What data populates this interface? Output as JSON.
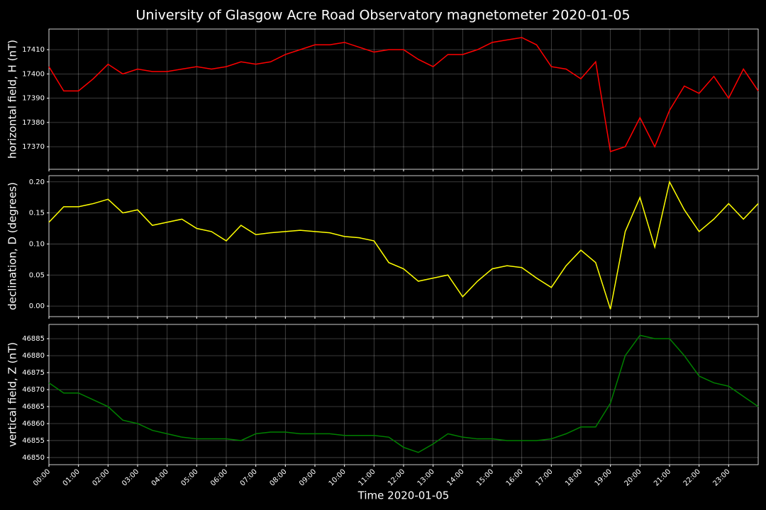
{
  "chart_data": [
    {
      "type": "line",
      "title": "University of Glasgow Acre Road Observatory magnetometer 2020-01-05",
      "ylabel": "horizontal field, H (nT)",
      "x": [
        0,
        0.5,
        1,
        1.5,
        2,
        2.5,
        3,
        3.5,
        4,
        4.5,
        5,
        5.5,
        6,
        6.5,
        7,
        7.5,
        8,
        8.5,
        9,
        9.5,
        10,
        10.5,
        11,
        11.5,
        12,
        12.5,
        13,
        13.5,
        14,
        14.5,
        15,
        15.5,
        16,
        16.5,
        17,
        17.5,
        18,
        18.5,
        19,
        19.5,
        20,
        20.5,
        21,
        21.5,
        22,
        22.5,
        23,
        23.5,
        24
      ],
      "series": [
        {
          "color": "#ff0000",
          "values": [
            17403,
            17393,
            17393,
            17398,
            17404,
            17400,
            17402,
            17401,
            17401,
            17402,
            17403,
            17402,
            17403,
            17405,
            17404,
            17405,
            17408,
            17410,
            17412,
            17412,
            17413,
            17411,
            17409,
            17410,
            17410,
            17406,
            17403,
            17408,
            17408,
            17410,
            17413,
            17414,
            17415,
            17412,
            17403,
            17402,
            17398,
            17405,
            17368,
            17370,
            17382,
            17370,
            17385,
            17395,
            17392,
            17399,
            17390,
            17402,
            17393
          ]
        }
      ],
      "xlim": [
        0,
        24
      ],
      "ylim": [
        17360.7,
        17418.5
      ],
      "yticks": [
        17370,
        17380,
        17390,
        17400,
        17410
      ],
      "grid": true
    },
    {
      "type": "line",
      "ylabel": "declination, D (degrees)",
      "x": [
        0,
        0.5,
        1,
        1.5,
        2,
        2.5,
        3,
        3.5,
        4,
        4.5,
        5,
        5.5,
        6,
        6.5,
        7,
        7.5,
        8,
        8.5,
        9,
        9.5,
        10,
        10.5,
        11,
        11.5,
        12,
        12.5,
        13,
        13.5,
        14,
        14.5,
        15,
        15.5,
        16,
        16.5,
        17,
        17.5,
        18,
        18.5,
        19,
        19.5,
        20,
        20.5,
        21,
        21.5,
        22,
        22.5,
        23,
        23.5,
        24
      ],
      "series": [
        {
          "color": "#ffff00",
          "values": [
            0.135,
            0.16,
            0.16,
            0.165,
            0.172,
            0.15,
            0.155,
            0.13,
            0.135,
            0.14,
            0.125,
            0.12,
            0.105,
            0.13,
            0.115,
            0.118,
            0.12,
            0.122,
            0.12,
            0.118,
            0.112,
            0.11,
            0.105,
            0.07,
            0.06,
            0.04,
            0.045,
            0.05,
            0.015,
            0.04,
            0.06,
            0.065,
            0.062,
            0.045,
            0.03,
            0.065,
            0.09,
            0.07,
            -0.005,
            0.12,
            0.175,
            0.095,
            0.2,
            0.155,
            0.12,
            0.14,
            0.165,
            0.14,
            0.165
          ]
        }
      ],
      "xlim": [
        0,
        24
      ],
      "ylim": [
        -0.017,
        0.21
      ],
      "yticks": [
        {
          "value": 0,
          "label": "0.00"
        },
        {
          "value": 0.05,
          "label": "0.05"
        },
        {
          "value": 0.1,
          "label": "0.10"
        },
        {
          "value": 0.15,
          "label": "0.15"
        },
        {
          "value": 0.2,
          "label": "0.20"
        }
      ],
      "grid": true
    },
    {
      "type": "line",
      "ylabel": "vertical field, Z (nT)",
      "xlabel": "Time 2020-01-05",
      "x": [
        0,
        0.5,
        1,
        1.5,
        2,
        2.5,
        3,
        3.5,
        4,
        4.5,
        5,
        5.5,
        6,
        6.5,
        7,
        7.5,
        8,
        8.5,
        9,
        9.5,
        10,
        10.5,
        11,
        11.5,
        12,
        12.5,
        13,
        13.5,
        14,
        14.5,
        15,
        15.5,
        16,
        16.5,
        17,
        17.5,
        18,
        18.5,
        19,
        19.5,
        20,
        20.5,
        21,
        21.5,
        22,
        22.5,
        23,
        23.5,
        24
      ],
      "series": [
        {
          "color": "#008000",
          "values": [
            46872,
            46869,
            46869,
            46867,
            46865,
            46861,
            46860,
            46858,
            46857,
            46856,
            46855.5,
            46855.5,
            46855.5,
            46855,
            46857,
            46857.5,
            46857.5,
            46857,
            46857,
            46857,
            46856.5,
            46856.5,
            46856.5,
            46856,
            46853,
            46851.5,
            46854,
            46857,
            46856,
            46855.5,
            46855.5,
            46855,
            46855,
            46855,
            46855.5,
            46857,
            46859,
            46859,
            46866,
            46880,
            46886,
            46885,
            46885,
            46880,
            46874,
            46872,
            46871,
            46868,
            46865
          ]
        }
      ],
      "xlim": [
        0,
        24
      ],
      "ylim": [
        46847.9,
        46889.2
      ],
      "yticks": [
        46850,
        46855,
        46860,
        46865,
        46870,
        46875,
        46880,
        46885
      ],
      "xticks": [
        {
          "value": 0,
          "label": "00:00"
        },
        {
          "value": 1,
          "label": "01:00"
        },
        {
          "value": 2,
          "label": "02:00"
        },
        {
          "value": 3,
          "label": "03:00"
        },
        {
          "value": 4,
          "label": "04:00"
        },
        {
          "value": 5,
          "label": "05:00"
        },
        {
          "value": 6,
          "label": "06:00"
        },
        {
          "value": 7,
          "label": "07:00"
        },
        {
          "value": 8,
          "label": "08:00"
        },
        {
          "value": 9,
          "label": "09:00"
        },
        {
          "value": 10,
          "label": "10:00"
        },
        {
          "value": 11,
          "label": "11:00"
        },
        {
          "value": 12,
          "label": "12:00"
        },
        {
          "value": 13,
          "label": "13:00"
        },
        {
          "value": 14,
          "label": "14:00"
        },
        {
          "value": 15,
          "label": "15:00"
        },
        {
          "value": 16,
          "label": "16:00"
        },
        {
          "value": 17,
          "label": "17:00"
        },
        {
          "value": 18,
          "label": "18:00"
        },
        {
          "value": 19,
          "label": "19:00"
        },
        {
          "value": 20,
          "label": "20:00"
        },
        {
          "value": 21,
          "label": "21:00"
        },
        {
          "value": 22,
          "label": "22:00"
        },
        {
          "value": 23,
          "label": "23:00"
        }
      ],
      "grid": true
    }
  ]
}
